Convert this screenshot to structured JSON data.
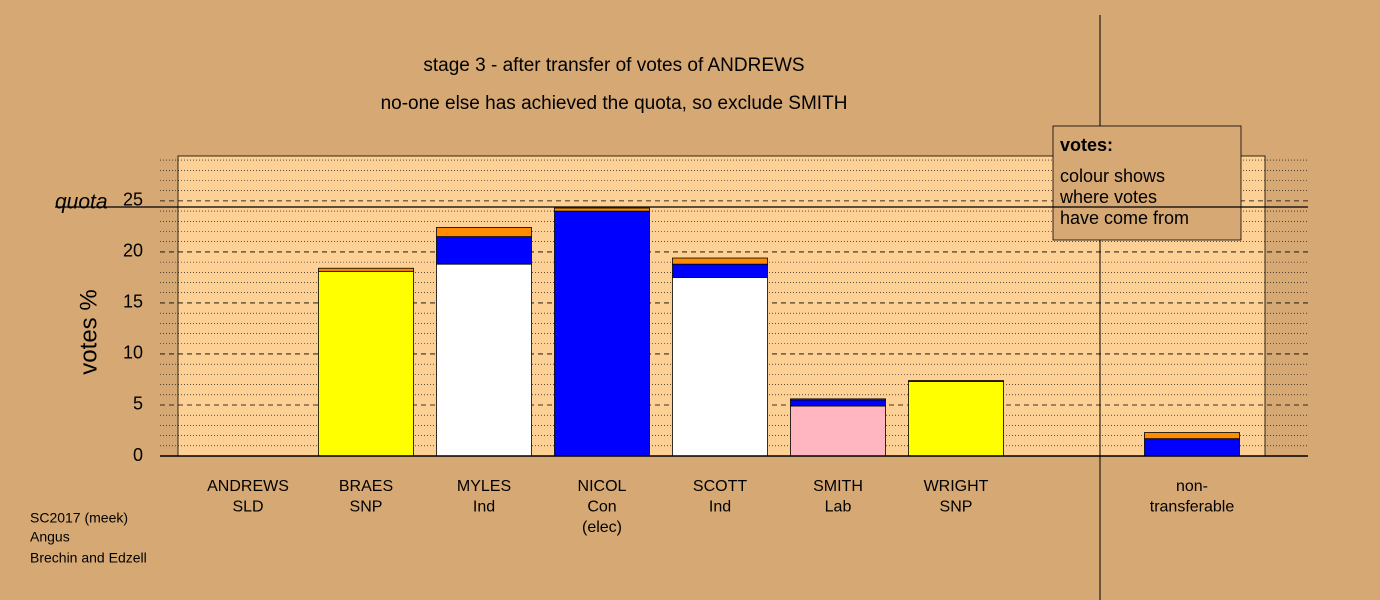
{
  "chart_data": {
    "type": "stacked_bar",
    "title": "stage 3 - after transfer of votes of ANDREWS",
    "subtitle": "no-one else has achieved the quota, so exclude SMITH",
    "y_label": "votes %",
    "categories": [
      [
        "ANDREWS",
        "SLD"
      ],
      [
        "BRAES",
        "SNP"
      ],
      [
        "MYLES",
        "Ind"
      ],
      [
        "NICOL",
        "Con",
        "(elec)"
      ],
      [
        "SCOTT",
        "Ind"
      ],
      [
        "SMITH",
        "Lab"
      ],
      [
        "WRIGHT",
        "SNP"
      ],
      null,
      [
        "non-",
        "transferable"
      ]
    ],
    "series": [
      {
        "color": "#ffff00",
        "values": [
          0,
          18.1,
          0,
          0,
          0,
          0,
          7.3,
          null,
          0
        ]
      },
      {
        "color": "#ffffff",
        "values": [
          0,
          0,
          18.8,
          0,
          17.5,
          0,
          0,
          null,
          0
        ]
      },
      {
        "color": "#ffb6c1",
        "values": [
          0,
          0,
          0,
          0,
          0,
          4.9,
          0,
          null,
          0
        ]
      },
      {
        "color": "#0000ff",
        "values": [
          0,
          0,
          2.7,
          24.0,
          1.3,
          0.6,
          0,
          null,
          1.7
        ]
      },
      {
        "color": "#ff8c00",
        "values": [
          0,
          0.3,
          0.9,
          0.3,
          0.6,
          0.1,
          0.1,
          null,
          0.6
        ]
      }
    ],
    "ylim": [
      0,
      29.4
    ],
    "yticks": [
      0,
      5,
      10,
      15,
      20,
      25
    ],
    "minor_yticks": [
      1,
      2,
      3,
      4,
      6,
      7,
      8,
      9,
      11,
      12,
      13,
      14,
      16,
      17,
      18,
      19,
      21,
      22,
      23,
      24,
      26,
      27,
      28,
      29
    ],
    "grid": true,
    "quota": 24.4,
    "quota_label": "quota",
    "legend_title": "votes:",
    "legend_text": [
      "colour shows",
      "where votes",
      "have come from"
    ],
    "footnote": [
      "SC2017 (meek)",
      "Angus",
      "Brechin and Edzell"
    ]
  }
}
